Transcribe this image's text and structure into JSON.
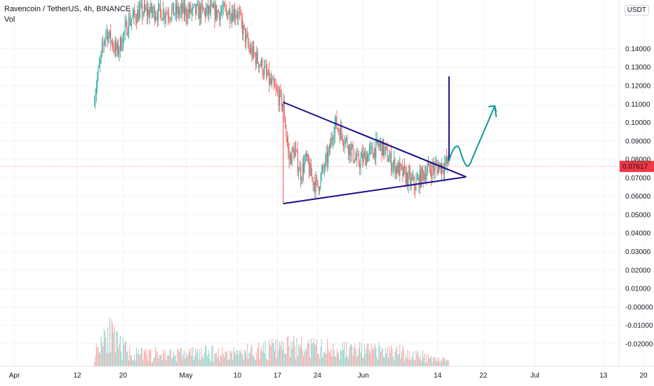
{
  "header": {
    "title": "Ravencoin / TetherUS, 4h, BINANCE",
    "volume_label": "Vol",
    "currency": "USDT"
  },
  "chart_data": {
    "type": "candlestick",
    "symbol": "Ravencoin / TetherUS",
    "interval": "4h",
    "exchange": "BINANCE",
    "last_price": "0.07617",
    "ylim": [
      -0.0265,
      0.1588
    ],
    "y_ticks": [
      "0.14000",
      "0.13000",
      "0.12000",
      "0.11000",
      "0.10000",
      "0.09000",
      "0.08000",
      "0.07000",
      "0.06000",
      "0.05000",
      "0.04000",
      "0.03000",
      "0.02000",
      "0.01000",
      "-0.00000",
      "-0.01000",
      "-0.02000"
    ],
    "x_ticks": [
      "Apr",
      "12",
      "20",
      "May",
      "10",
      "17",
      "24",
      "Jun",
      "14",
      "22",
      "Jul",
      "13",
      "20"
    ],
    "colors": {
      "up": "#26a69a",
      "down": "#ef5350",
      "pattern": "#1a0f8a",
      "projection": "#0e9a97",
      "price_line": "#f23645"
    },
    "price_path": [
      {
        "date": "Apr 15",
        "price": 0.115
      },
      {
        "date": "Apr 17",
        "price": 0.15
      },
      {
        "date": "Apr 19",
        "price": 0.138
      },
      {
        "date": "Apr 21",
        "price": 0.155
      },
      {
        "date": "Apr 23",
        "price": 0.16
      },
      {
        "date": "May 10",
        "price": 0.16
      },
      {
        "date": "May 12",
        "price": 0.14
      },
      {
        "date": "May 14",
        "price": 0.132
      },
      {
        "date": "May 16",
        "price": 0.12
      },
      {
        "date": "May 18",
        "price": 0.11
      },
      {
        "date": "May 19",
        "price": 0.08
      },
      {
        "date": "May 20",
        "price": 0.085
      },
      {
        "date": "May 21",
        "price": 0.072
      },
      {
        "date": "May 22",
        "price": 0.08
      },
      {
        "date": "May 23",
        "price": 0.07
      },
      {
        "date": "May 24",
        "price": 0.065
      },
      {
        "date": "May 26",
        "price": 0.083
      },
      {
        "date": "May 27",
        "price": 0.1
      },
      {
        "date": "May 29",
        "price": 0.09
      },
      {
        "date": "May 31",
        "price": 0.078
      },
      {
        "date": "Jun 2",
        "price": 0.083
      },
      {
        "date": "Jun 4",
        "price": 0.088
      },
      {
        "date": "Jun 6",
        "price": 0.078
      },
      {
        "date": "Jun 8",
        "price": 0.072
      },
      {
        "date": "Jun 10",
        "price": 0.066
      },
      {
        "date": "Jun 12",
        "price": 0.074
      },
      {
        "date": "Jun 14",
        "price": 0.076
      },
      {
        "date": "Jun 16",
        "price": 0.078
      }
    ],
    "volume_path": [
      {
        "date": "Apr 15",
        "volume": 0.3
      },
      {
        "date": "Apr 17",
        "volume": 1.0
      },
      {
        "date": "Apr 19",
        "volume": 0.55
      },
      {
        "date": "Apr 22",
        "volume": 0.3
      },
      {
        "date": "May 10",
        "volume": 0.35
      },
      {
        "date": "May 19",
        "volume": 0.5
      },
      {
        "date": "Jun 8",
        "volume": 0.35
      },
      {
        "date": "Jun 16",
        "volume": 0.15
      }
    ]
  }
}
